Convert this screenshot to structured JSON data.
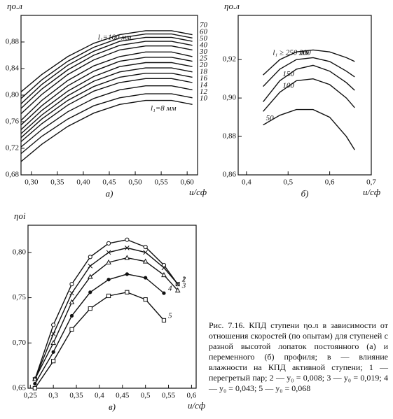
{
  "chart_data": [
    {
      "type": "line",
      "panel": "а)",
      "ylabel": "ηо.л",
      "xlabel": "u/cф",
      "color": "#111111",
      "grid": false,
      "xlim": [
        0.28,
        0.62
      ],
      "ylim": [
        0.68,
        0.92
      ],
      "xticks": [
        {
          "value": 0.3,
          "label": "0,30"
        },
        {
          "value": 0.35,
          "label": "0,35"
        },
        {
          "value": 0.4,
          "label": "0,40"
        },
        {
          "value": 0.45,
          "label": "0,45"
        },
        {
          "value": 0.5,
          "label": "0,50"
        },
        {
          "value": 0.55,
          "label": "0,55"
        },
        {
          "value": 0.6,
          "label": "0,60"
        }
      ],
      "yticks": [
        {
          "value": 0.68,
          "label": "0,68"
        },
        {
          "value": 0.72,
          "label": "0,72"
        },
        {
          "value": 0.76,
          "label": "0,76"
        },
        {
          "value": 0.8,
          "label": "0,80"
        },
        {
          "value": 0.84,
          "label": "0,84"
        },
        {
          "value": 0.88,
          "label": "0,88"
        }
      ],
      "x": [
        0.28,
        0.32,
        0.37,
        0.42,
        0.47,
        0.52,
        0.57,
        0.61
      ],
      "series": [
        {
          "name": "l₁=100 мм",
          "values": [
            0.805,
            0.831,
            0.858,
            0.878,
            0.891,
            0.897,
            0.897,
            0.891
          ]
        },
        {
          "name": "70",
          "values": [
            0.795,
            0.823,
            0.851,
            0.872,
            0.886,
            0.892,
            0.892,
            0.886
          ]
        },
        {
          "name": "60",
          "values": [
            0.787,
            0.816,
            0.845,
            0.866,
            0.881,
            0.887,
            0.887,
            0.881
          ]
        },
        {
          "name": "50",
          "values": [
            0.78,
            0.809,
            0.838,
            0.86,
            0.875,
            0.881,
            0.881,
            0.875
          ]
        },
        {
          "name": "40",
          "values": [
            0.772,
            0.801,
            0.831,
            0.853,
            0.868,
            0.874,
            0.874,
            0.868
          ]
        },
        {
          "name": "30",
          "values": [
            0.762,
            0.792,
            0.822,
            0.844,
            0.858,
            0.865,
            0.865,
            0.858
          ]
        },
        {
          "name": "25",
          "values": [
            0.755,
            0.784,
            0.814,
            0.836,
            0.851,
            0.857,
            0.857,
            0.851
          ]
        },
        {
          "name": "20",
          "values": [
            0.748,
            0.777,
            0.806,
            0.828,
            0.843,
            0.849,
            0.849,
            0.843
          ]
        },
        {
          "name": "18",
          "values": [
            0.742,
            0.77,
            0.799,
            0.821,
            0.835,
            0.841,
            0.841,
            0.835
          ]
        },
        {
          "name": "16",
          "values": [
            0.736,
            0.764,
            0.792,
            0.813,
            0.827,
            0.833,
            0.833,
            0.827
          ]
        },
        {
          "name": "14",
          "values": [
            0.73,
            0.757,
            0.785,
            0.806,
            0.819,
            0.825,
            0.825,
            0.819
          ]
        },
        {
          "name": "12",
          "values": [
            0.722,
            0.748,
            0.775,
            0.795,
            0.808,
            0.814,
            0.814,
            0.808
          ]
        },
        {
          "name": "10",
          "values": [
            0.712,
            0.738,
            0.764,
            0.784,
            0.796,
            0.802,
            0.802,
            0.796
          ]
        },
        {
          "name": "l₁=8 мм",
          "values": [
            0.7,
            0.726,
            0.753,
            0.773,
            0.786,
            0.792,
            0.792,
            0.786
          ]
        }
      ]
    },
    {
      "type": "line",
      "panel": "б)",
      "ylabel": "ηо.л",
      "xlabel": "u/cф",
      "color": "#111111",
      "grid": false,
      "xlim": [
        0.38,
        0.7
      ],
      "ylim": [
        0.86,
        0.943
      ],
      "xticks": [
        {
          "value": 0.4,
          "label": "0,4"
        },
        {
          "value": 0.5,
          "label": "0,5"
        },
        {
          "value": 0.6,
          "label": "0,6"
        },
        {
          "value": 0.7,
          "label": "0,7"
        }
      ],
      "yticks": [
        {
          "value": 0.86,
          "label": "0,86"
        },
        {
          "value": 0.88,
          "label": "0,88"
        },
        {
          "value": 0.9,
          "label": "0,90"
        },
        {
          "value": 0.92,
          "label": "0,92"
        }
      ],
      "x": [
        0.44,
        0.48,
        0.52,
        0.56,
        0.6,
        0.64,
        0.66
      ],
      "series": [
        {
          "name": "l₁ ≥ 250 мм",
          "values": [
            0.912,
            0.92,
            0.924,
            0.925,
            0.924,
            0.921,
            0.919
          ]
        },
        {
          "name": "200",
          "values": [
            0.906,
            0.915,
            0.92,
            0.921,
            0.919,
            0.914,
            0.911
          ]
        },
        {
          "name": "150",
          "values": [
            0.898,
            0.909,
            0.915,
            0.917,
            0.914,
            0.908,
            0.904
          ]
        },
        {
          "name": "100",
          "values": [
            0.893,
            0.903,
            0.909,
            0.91,
            0.907,
            0.9,
            0.895
          ]
        },
        {
          "name": "50",
          "values": [
            0.886,
            0.891,
            0.894,
            0.894,
            0.89,
            0.88,
            0.873
          ]
        }
      ]
    },
    {
      "type": "line",
      "panel": "в)",
      "ylabel": "ηoi",
      "xlabel": "u/cф",
      "color": "#111111",
      "grid": false,
      "xlim": [
        0.245,
        0.61
      ],
      "ylim": [
        0.65,
        0.83
      ],
      "xticks": [
        {
          "value": 0.25,
          "label": "0,25"
        },
        {
          "value": 0.3,
          "label": "0,3"
        },
        {
          "value": 0.35,
          "label": "0,35"
        },
        {
          "value": 0.4,
          "label": "0,4"
        },
        {
          "value": 0.45,
          "label": "0,45"
        },
        {
          "value": 0.5,
          "label": "0,5"
        },
        {
          "value": 0.55,
          "label": "0,55"
        },
        {
          "value": 0.6,
          "label": "0,6"
        }
      ],
      "yticks": [
        {
          "value": 0.65,
          "label": "0,65"
        },
        {
          "value": 0.7,
          "label": "0,70"
        },
        {
          "value": 0.75,
          "label": "0,75"
        },
        {
          "value": 0.8,
          "label": "0,80"
        }
      ],
      "series": [
        {
          "name": "1",
          "marker": "circle",
          "x": [
            0.26,
            0.3,
            0.34,
            0.38,
            0.42,
            0.46,
            0.5,
            0.54,
            0.57
          ],
          "values": [
            0.66,
            0.72,
            0.765,
            0.795,
            0.81,
            0.814,
            0.806,
            0.786,
            0.765
          ]
        },
        {
          "name": "2",
          "marker": "cross",
          "x": [
            0.26,
            0.3,
            0.34,
            0.38,
            0.42,
            0.46,
            0.5,
            0.54,
            0.57
          ],
          "values": [
            0.66,
            0.71,
            0.755,
            0.785,
            0.8,
            0.805,
            0.8,
            0.783,
            0.765
          ]
        },
        {
          "name": "3",
          "marker": "triangle",
          "x": [
            0.26,
            0.3,
            0.34,
            0.38,
            0.42,
            0.46,
            0.5,
            0.54,
            0.57
          ],
          "values": [
            0.66,
            0.7,
            0.745,
            0.773,
            0.789,
            0.794,
            0.79,
            0.775,
            0.758
          ]
        },
        {
          "name": "4",
          "marker": "dot",
          "x": [
            0.26,
            0.3,
            0.34,
            0.38,
            0.42,
            0.46,
            0.5,
            0.54
          ],
          "values": [
            0.655,
            0.69,
            0.73,
            0.756,
            0.77,
            0.776,
            0.772,
            0.755
          ]
        },
        {
          "name": "5",
          "marker": "square",
          "x": [
            0.26,
            0.3,
            0.34,
            0.38,
            0.42,
            0.46,
            0.5,
            0.54
          ],
          "values": [
            0.65,
            0.68,
            0.715,
            0.738,
            0.752,
            0.756,
            0.748,
            0.725
          ]
        }
      ]
    }
  ],
  "caption": "Рис. 7.16. КПД ступени ηо.л в зависимости от отношения скоростей (по опытам) для ступеней с разной высотой лопаток постоянного (а) и переменного (б) профиля; в — влияние влажности на КПД активной ступени; 1 — перегретый пар; 2 — y₀ = 0,008; 3 — y₀ = 0,019; 4 — y₀ = 0,043; 5 — y₀ = 0,068"
}
